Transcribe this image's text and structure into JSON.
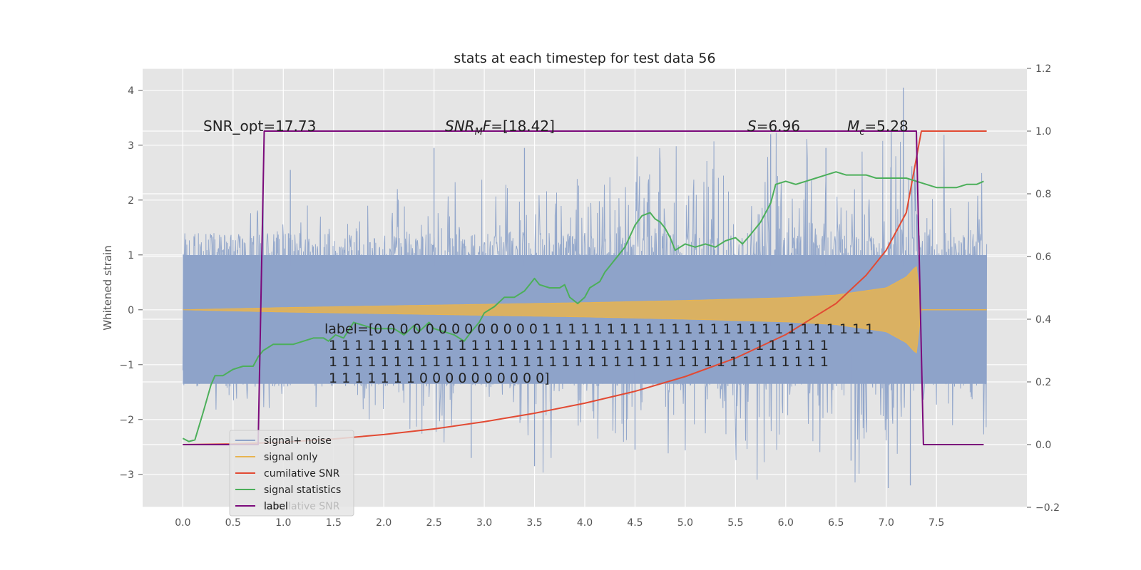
{
  "chart_data": {
    "type": "line",
    "title": "stats at each timestep for test data 56",
    "xlabel": "",
    "ylabel": "Whitened strain",
    "y2label": "",
    "xlim": [
      -0.4,
      8.4
    ],
    "ylim": [
      -3.6,
      4.4
    ],
    "y2lim": [
      -0.2,
      1.2
    ],
    "xticks": [
      "0.0",
      "0.5",
      "1.0",
      "1.5",
      "2.0",
      "2.5",
      "3.0",
      "3.5",
      "4.0",
      "4.5",
      "5.0",
      "5.5",
      "6.0",
      "6.5",
      "7.0",
      "7.5"
    ],
    "yticks": [
      "−3",
      "−2",
      "−1",
      "0",
      "1",
      "2",
      "3",
      "4"
    ],
    "y2ticks": [
      "−0.2",
      "0.0",
      "0.2",
      "0.4",
      "0.6",
      "0.8",
      "1.0",
      "1.2"
    ],
    "grid": true,
    "legend_position": "lower-left",
    "colors": {
      "signal_noise": "#8EA3C9",
      "signal_only": "#E8B450",
      "cumulative_snr": "#E24A33",
      "signal_statistics": "#4CAF5A",
      "label": "#7B0A7B",
      "axes_bg": "#E5E5E5",
      "grid": "#FFFFFF"
    },
    "series": [
      {
        "name": "signal+ noise",
        "axis": "left",
        "kind": "noise",
        "x_range": [
          0,
          8.0
        ],
        "envelope": [
          [
            0.0,
            1.3
          ],
          [
            1.0,
            1.6
          ],
          [
            3.0,
            2.0
          ],
          [
            5.0,
            2.4
          ],
          [
            7.0,
            2.6
          ],
          [
            8.0,
            2.0
          ]
        ],
        "spikes_up": [
          [
            0.8,
            2.5
          ],
          [
            1.07,
            2.55
          ],
          [
            2.5,
            2.95
          ],
          [
            3.4,
            2.95
          ],
          [
            5.85,
            3.2
          ],
          [
            6.4,
            2.95
          ],
          [
            7.17,
            4.05
          ],
          [
            7.05,
            3.25
          ]
        ],
        "spikes_down": [
          [
            2.87,
            -2.7
          ],
          [
            3.5,
            -2.85
          ],
          [
            4.5,
            -2.55
          ],
          [
            7.02,
            -3.25
          ],
          [
            7.24,
            -3.2
          ],
          [
            6.65,
            -2.75
          ]
        ]
      },
      {
        "name": "signal only",
        "axis": "left",
        "kind": "chirp",
        "x": [
          0.0,
          1.0,
          2.0,
          3.0,
          4.0,
          5.0,
          6.0,
          6.5,
          7.0,
          7.2,
          7.3,
          7.35
        ],
        "amplitude": [
          0.0,
          0.04,
          0.07,
          0.1,
          0.13,
          0.17,
          0.22,
          0.27,
          0.4,
          0.6,
          0.8,
          0.0
        ]
      },
      {
        "name": "cumilative SNR",
        "axis": "right",
        "x": [
          0.0,
          0.5,
          1.0,
          1.5,
          2.0,
          2.5,
          3.0,
          3.5,
          4.0,
          4.5,
          5.0,
          5.5,
          6.0,
          6.5,
          6.8,
          7.0,
          7.2,
          7.35,
          8.0
        ],
        "y": [
          0.0,
          0.002,
          0.008,
          0.018,
          0.032,
          0.05,
          0.073,
          0.1,
          0.132,
          0.17,
          0.217,
          0.276,
          0.351,
          0.45,
          0.54,
          0.62,
          0.74,
          1.0,
          1.0
        ]
      },
      {
        "name": "signal statistics",
        "axis": "right",
        "x": [
          0.0,
          0.06,
          0.12,
          0.2,
          0.28,
          0.32,
          0.4,
          0.5,
          0.6,
          0.7,
          0.75,
          0.8,
          0.9,
          1.0,
          1.1,
          1.2,
          1.3,
          1.4,
          1.45,
          1.52,
          1.6,
          1.7,
          1.8,
          1.9,
          2.0,
          2.1,
          2.2,
          2.3,
          2.35,
          2.45,
          2.5,
          2.6,
          2.7,
          2.8,
          2.87,
          2.95,
          3.0,
          3.1,
          3.2,
          3.3,
          3.4,
          3.45,
          3.5,
          3.55,
          3.65,
          3.75,
          3.8,
          3.85,
          3.93,
          4.0,
          4.05,
          4.15,
          4.2,
          4.3,
          4.4,
          4.5,
          4.57,
          4.65,
          4.7,
          4.75,
          4.8,
          4.85,
          4.9,
          5.0,
          5.1,
          5.2,
          5.3,
          5.4,
          5.5,
          5.57,
          5.65,
          5.75,
          5.85,
          5.9,
          6.0,
          6.1,
          6.2,
          6.3,
          6.4,
          6.5,
          6.6,
          6.7,
          6.8,
          6.9,
          7.0,
          7.1,
          7.2,
          7.3,
          7.4,
          7.5,
          7.6,
          7.7,
          7.8,
          7.9,
          7.97
        ],
        "y": [
          0.02,
          0.01,
          0.015,
          0.1,
          0.19,
          0.22,
          0.22,
          0.24,
          0.25,
          0.25,
          0.28,
          0.3,
          0.32,
          0.32,
          0.32,
          0.33,
          0.34,
          0.34,
          0.33,
          0.35,
          0.34,
          0.39,
          0.38,
          0.37,
          0.37,
          0.37,
          0.35,
          0.38,
          0.36,
          0.39,
          0.37,
          0.36,
          0.35,
          0.33,
          0.36,
          0.39,
          0.42,
          0.44,
          0.47,
          0.47,
          0.49,
          0.51,
          0.53,
          0.51,
          0.5,
          0.5,
          0.51,
          0.47,
          0.45,
          0.47,
          0.5,
          0.52,
          0.55,
          0.59,
          0.63,
          0.7,
          0.73,
          0.74,
          0.72,
          0.71,
          0.69,
          0.66,
          0.62,
          0.64,
          0.63,
          0.64,
          0.63,
          0.65,
          0.66,
          0.64,
          0.67,
          0.71,
          0.77,
          0.83,
          0.84,
          0.83,
          0.84,
          0.85,
          0.86,
          0.87,
          0.86,
          0.86,
          0.86,
          0.85,
          0.85,
          0.85,
          0.85,
          0.84,
          0.83,
          0.82,
          0.82,
          0.82,
          0.83,
          0.83,
          0.84
        ]
      },
      {
        "name": "label",
        "axis": "right",
        "x": [
          0.0,
          0.75,
          0.81,
          7.3,
          7.37,
          7.97
        ],
        "y": [
          0.0,
          0.0,
          1.0,
          1.0,
          0.0,
          0.0
        ]
      }
    ],
    "annotations": {
      "snr_opt": "SNR_opt=17.73",
      "snr_mf_base": "SNR",
      "snr_mf_sub": "M",
      "snr_mf_f": "F",
      "snr_mf_val": "=[18.42]",
      "s_sym": "S",
      "s_val": "=6.96",
      "mc_sym": "M",
      "mc_sub": "c",
      "mc_val": "=5.28",
      "label_lines": [
        "label=[0 0 0 0 0 0 0 0 0 0 0 0 0 1 1 1 1 1 1 1 1 1 1 1 1 1 1 1 1 1 1 1 1 1 1 1 1 1 1",
        " 1 1 1 1 1 1 1 1 1 1 1 1 1 1 1 1 1 1 1 1 1 1 1 1 1 1 1 1 1 1 1 1 1 1 1 1 1 1 1",
        " 1 1 1 1 1 1 1 1 1 1 1 1 1 1 1 1 1 1 1 1 1 1 1 1 1 1 1 1 1 1 1 1 1 1 1 1 1 1 1",
        " 1 1 1 1 1 1 1 0 0 0 0 0 0 0 0 0 0]"
      ]
    },
    "legend": {
      "items": [
        "signal+ noise",
        "signal only",
        "cumilative SNR",
        "signal statistics",
        "label"
      ],
      "ghost": "cumilative SNR"
    }
  }
}
